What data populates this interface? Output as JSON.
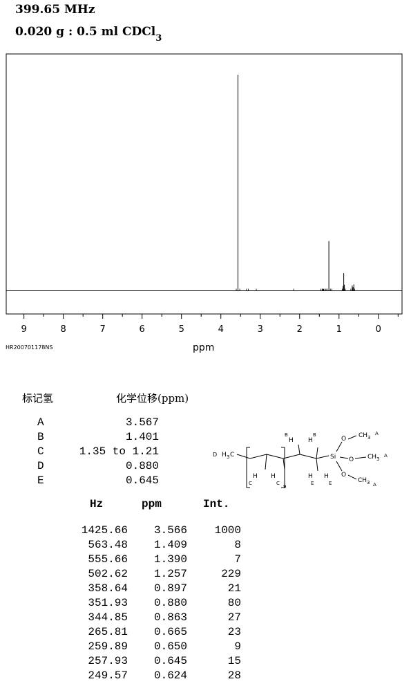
{
  "header": {
    "frequency": "399.65 MHz",
    "sample_main": "0.020 g : 0.5 ml CDCl",
    "sample_sub": "3"
  },
  "sample_code": "HR200701178NS",
  "chart_data": {
    "type": "line",
    "xlabel": "ppm",
    "xlim": [
      9.45,
      -0.6
    ],
    "x_reversed": true,
    "x_ticks": [
      9,
      8,
      7,
      6,
      5,
      4,
      3,
      2,
      1,
      0
    ],
    "x_tick_labels": [
      "9",
      "8",
      "7",
      "6",
      "5",
      "4",
      "3",
      "2",
      "1",
      "0"
    ],
    "ylim": [
      0,
      1000
    ],
    "grid": false,
    "peaks": [
      {
        "ppm": 3.566,
        "intensity": 1000
      },
      {
        "ppm": 1.409,
        "intensity": 8
      },
      {
        "ppm": 1.39,
        "intensity": 7
      },
      {
        "ppm": 1.257,
        "intensity": 229
      },
      {
        "ppm": 0.897,
        "intensity": 21
      },
      {
        "ppm": 0.88,
        "intensity": 80
      },
      {
        "ppm": 0.863,
        "intensity": 27
      },
      {
        "ppm": 0.665,
        "intensity": 23
      },
      {
        "ppm": 0.65,
        "intensity": 9
      },
      {
        "ppm": 0.645,
        "intensity": 15
      },
      {
        "ppm": 0.624,
        "intensity": 28
      }
    ]
  },
  "assignments": {
    "header_h": "标记氢",
    "header_shift": "化学位移(ppm)",
    "rows": [
      {
        "label": "A",
        "value": "3.567"
      },
      {
        "label": "B",
        "value": "1.401"
      },
      {
        "label": "C",
        "value": "1.35 to 1.21"
      },
      {
        "label": "D",
        "value": "0.880"
      },
      {
        "label": "E",
        "value": "0.645"
      }
    ]
  },
  "peak_table": {
    "headers": {
      "hz": "Hz",
      "ppm": "ppm",
      "int": "Int."
    },
    "rows": [
      {
        "hz": "1425.66",
        "ppm": "3.566",
        "int": "1000"
      },
      {
        "hz": "563.48",
        "ppm": "1.409",
        "int": "8"
      },
      {
        "hz": "555.66",
        "ppm": "1.390",
        "int": "7"
      },
      {
        "hz": "502.62",
        "ppm": "1.257",
        "int": "229"
      },
      {
        "hz": "358.64",
        "ppm": "0.897",
        "int": "21"
      },
      {
        "hz": "351.93",
        "ppm": "0.880",
        "int": "80"
      },
      {
        "hz": "344.85",
        "ppm": "0.863",
        "int": "27"
      },
      {
        "hz": "265.81",
        "ppm": "0.665",
        "int": "23"
      },
      {
        "hz": "259.89",
        "ppm": "0.650",
        "int": "9"
      },
      {
        "hz": "257.93",
        "ppm": "0.645",
        "int": "15"
      },
      {
        "hz": "249.57",
        "ppm": "0.624",
        "int": "28"
      }
    ]
  },
  "structure_labels": {
    "d_label": "D",
    "ch3_left": "H",
    "ch3_left_sub": "3",
    "ch3_left_c": "C",
    "h": "H",
    "b": "B",
    "c": "C",
    "e": "E",
    "a": "A",
    "si": "Si",
    "o": "O",
    "ch3": "CH",
    "ch3_sub": "3",
    "repeat": "9"
  }
}
